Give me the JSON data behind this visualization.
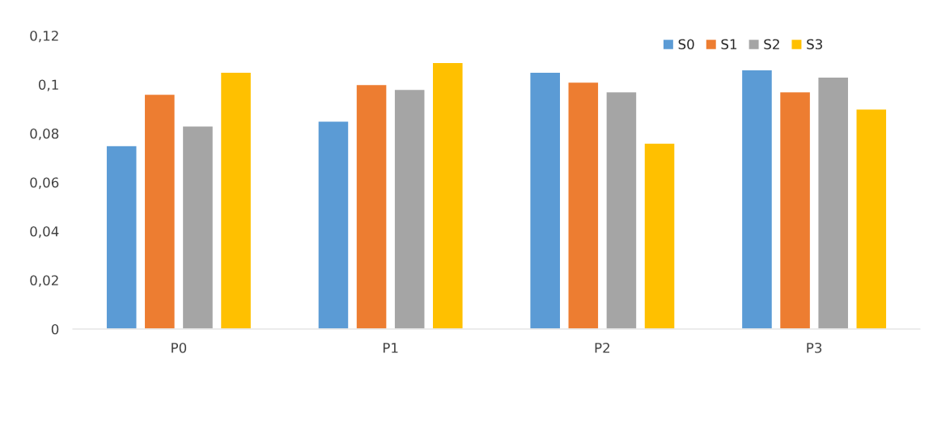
{
  "chart_data": {
    "type": "bar",
    "categories": [
      "P0",
      "P1",
      "P2",
      "P3"
    ],
    "series": [
      {
        "name": "S0",
        "color": "#5b9bd5",
        "values": [
          0.075,
          0.085,
          0.105,
          0.106
        ]
      },
      {
        "name": "S1",
        "color": "#ed7d31",
        "values": [
          0.096,
          0.1,
          0.101,
          0.097
        ]
      },
      {
        "name": "S2",
        "color": "#a5a5a5",
        "values": [
          0.083,
          0.098,
          0.097,
          0.103
        ]
      },
      {
        "name": "S3",
        "color": "#ffc000",
        "values": [
          0.105,
          0.109,
          0.076,
          0.09
        ]
      }
    ],
    "ylim": [
      0,
      0.12
    ],
    "yticks": [
      {
        "value": 0,
        "label": "0"
      },
      {
        "value": 0.02,
        "label": "0,02"
      },
      {
        "value": 0.04,
        "label": "0,04"
      },
      {
        "value": 0.06,
        "label": "0,06"
      },
      {
        "value": 0.08,
        "label": "0,08"
      },
      {
        "value": 0.1,
        "label": "0,1"
      },
      {
        "value": 0.12,
        "label": "0,12"
      }
    ],
    "legend": "top right"
  }
}
